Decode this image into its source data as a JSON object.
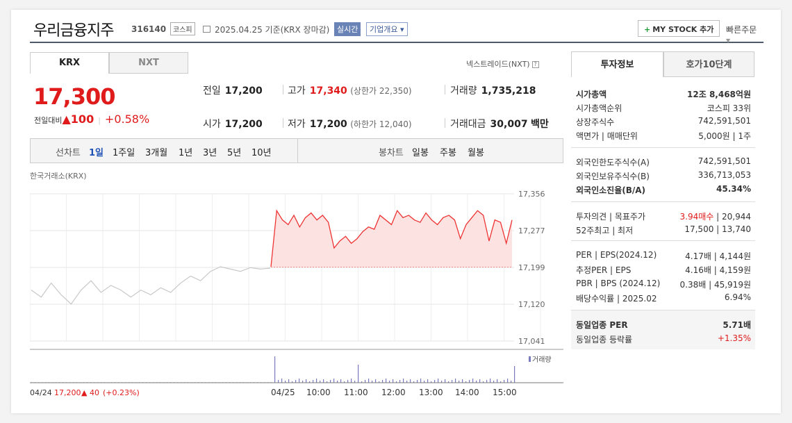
{
  "header": {
    "name": "우리금융지주",
    "code": "316140",
    "market": "코스피",
    "date": "2025.04.25",
    "basis": "기준(KRX 장마감)",
    "realtime": "실시간",
    "company_info": "기업개요",
    "mystock": "MY STOCK 추가",
    "quick_order": "빠른주문"
  },
  "left_tabs": [
    "KRX",
    "NXT"
  ],
  "nxt_link": "넥스트레이드(NXT)",
  "price": {
    "current": "17,300",
    "change_label": "전일대비",
    "change": "100",
    "change_pct": "+0.58%"
  },
  "stats": {
    "prev_close": {
      "label": "전일",
      "value": "17,200"
    },
    "high": {
      "label": "고가",
      "value": "17,340",
      "sub": "(상한가 22,350)"
    },
    "volume": {
      "label": "거래량",
      "value": "1,735,218"
    },
    "open": {
      "label": "시가",
      "value": "17,200"
    },
    "low": {
      "label": "저가",
      "value": "17,200",
      "sub": "(하한가 12,040)"
    },
    "amount": {
      "label": "거래대금",
      "value": "30,007",
      "unit": "백만"
    }
  },
  "periods": {
    "line_label": "선차트",
    "line": [
      "1일",
      "1주일",
      "3개월",
      "1년",
      "3년",
      "5년",
      "10년"
    ],
    "candle_label": "봉차트",
    "candle": [
      "일봉",
      "주봉",
      "월봉"
    ]
  },
  "chart_source": "한국거래소(KRX)",
  "chart_data": {
    "type": "line",
    "y_ticks": [
      "17,356",
      "17,277",
      "17,199",
      "17,120",
      "17,041"
    ],
    "ylim": [
      17041,
      17356
    ],
    "baseline": 17199,
    "x_ticks": [
      "04/24",
      "04/25",
      "10:00",
      "11:00",
      "12:00",
      "13:00",
      "14:00",
      "15:00"
    ],
    "volume_label": "거래량",
    "prev_day": [
      17150,
      17135,
      17165,
      17140,
      17120,
      17150,
      17170,
      17145,
      17160,
      17150,
      17135,
      17150,
      17140,
      17155,
      17145,
      17165,
      17180,
      17170,
      17190,
      17200,
      17195,
      17190,
      17198,
      17195,
      17197
    ],
    "today": [
      17200,
      17320,
      17300,
      17290,
      17310,
      17285,
      17305,
      17315,
      17300,
      17310,
      17295,
      17240,
      17255,
      17265,
      17250,
      17260,
      17275,
      17285,
      17280,
      17310,
      17300,
      17290,
      17320,
      17305,
      17310,
      17300,
      17295,
      17315,
      17300,
      17290,
      17305,
      17310,
      17300,
      17260,
      17290,
      17305,
      17320,
      17310,
      17255,
      17300,
      17295,
      17250,
      17300
    ],
    "prev_day_footer": {
      "date": "04/24",
      "price": "17,200",
      "change": "40",
      "pct": "(+0.23%)"
    }
  },
  "right_tabs": [
    "투자정보",
    "호가10단계"
  ],
  "info": [
    {
      "label": "시가총액",
      "value": "12조 8,468억원",
      "bold": true
    },
    {
      "label": "시가총액순위",
      "value": "코스피 33위"
    },
    {
      "label": "상장주식수",
      "value": "742,591,501"
    },
    {
      "label": "액면가 | 매매단위",
      "value": "5,000원 | 1주"
    },
    {
      "label": "외국인한도주식수(A)",
      "value": "742,591,501"
    },
    {
      "label": "외국인보유주식수(B)",
      "value": "336,713,053"
    },
    {
      "label": "외국인소진율(B/A)",
      "value": "45.34%",
      "bold": true
    },
    {
      "label": "투자의견 | 목표주가",
      "value_red": "3.94매수",
      "value": "| 20,944"
    },
    {
      "label": "52주최고 | 최저",
      "value": "17,500 | 13,740"
    },
    {
      "label": "PER | EPS(2024.12)",
      "value": "4.17배 | 4,144원"
    },
    {
      "label": "추정PER | EPS",
      "value": "4.16배 | 4,159원"
    },
    {
      "label": "PBR | BPS (2024.12)",
      "value": "0.38배 | 45,919원"
    },
    {
      "label": "배당수익률 | 2025.02",
      "value": "6.94%"
    },
    {
      "label": "동일업종 PER",
      "value": "5.71배",
      "bold": true
    },
    {
      "label": "동일업종 등락률",
      "value": "+1.35%",
      "red": true
    }
  ]
}
